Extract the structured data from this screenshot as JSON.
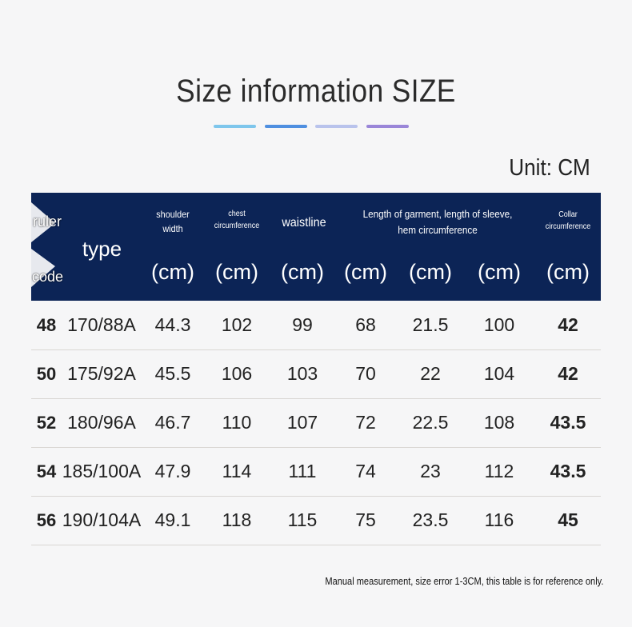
{
  "title": "Size information SIZE",
  "unit": "Unit: CM",
  "table": {
    "header": {
      "ruler": "ruler",
      "code": "code",
      "type": "type",
      "columns": [
        "shoulder width",
        "chest circumference",
        "waistline",
        "Length of garment, length of sleeve, hem circumference",
        "Collar circumference"
      ],
      "units": [
        "(cm)",
        "(cm)",
        "(cm)",
        "(cm)",
        "(cm)",
        "(cm)",
        "(cm)"
      ]
    },
    "rows": [
      [
        "48",
        "170/88A",
        "44.3",
        "102",
        "99",
        "68",
        "21.5",
        "100",
        "42"
      ],
      [
        "50",
        "175/92A",
        "45.5",
        "106",
        "103",
        "70",
        "22",
        "104",
        "42"
      ],
      [
        "52",
        "180/96A",
        "46.7",
        "110",
        "107",
        "72",
        "22.5",
        "108",
        "43.5"
      ],
      [
        "54",
        "185/100A",
        "47.9",
        "114",
        "111",
        "74",
        "23",
        "112",
        "43.5"
      ],
      [
        "56",
        "190/104A",
        "49.1",
        "118",
        "115",
        "75",
        "23.5",
        "116",
        "45"
      ]
    ]
  },
  "note": "Manual measurement, size error 1-3CM, this table is for reference only."
}
